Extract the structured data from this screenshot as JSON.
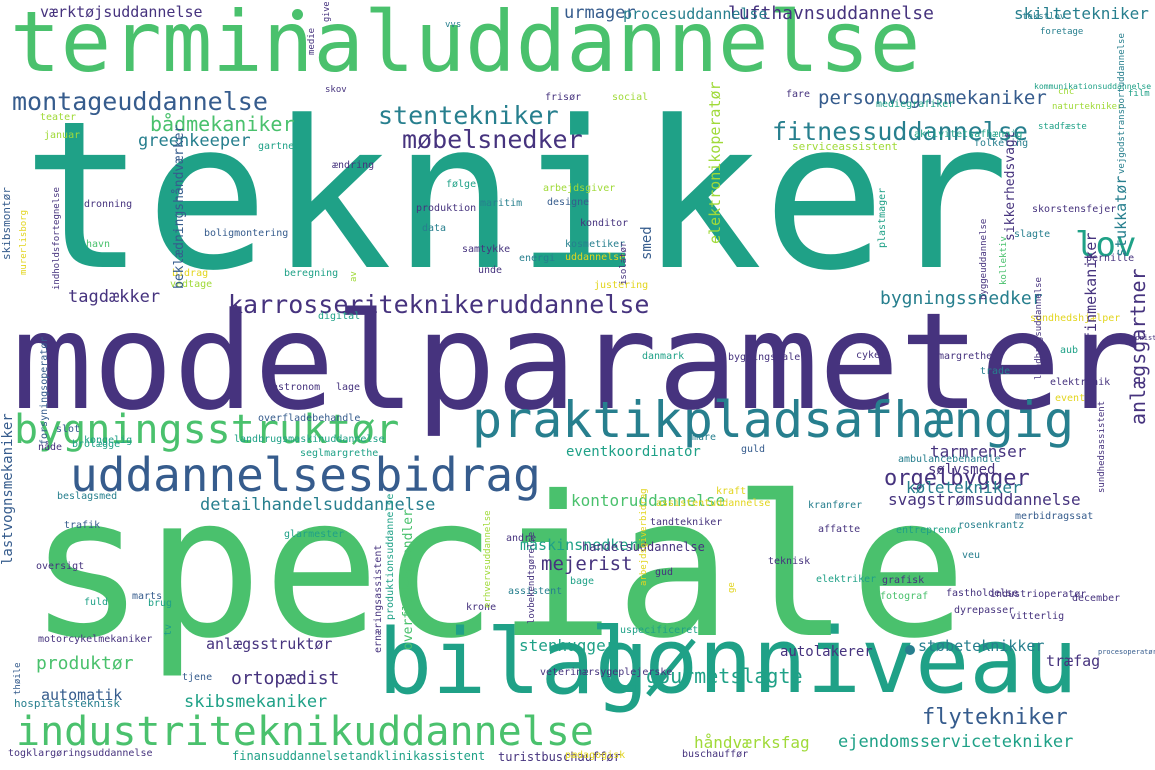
{
  "palette": {
    "dark_purple": "#46337e",
    "blue": "#365c8d",
    "teal": "#277f8e",
    "green": "#1fa187",
    "light_green": "#4ac16d",
    "lime": "#a0da39",
    "yellow": "#e2d51f"
  },
  "words": [
    {
      "text": "tekniker"
    },
    {
      "text": "modelparameter"
    },
    {
      "text": "speciale"
    },
    {
      "text": "terminaluddannelse"
    },
    {
      "text": "bilag"
    },
    {
      "text": "lønniveau"
    },
    {
      "text": "praktikpladsafhængig"
    },
    {
      "text": "industriteknikuddannelse"
    },
    {
      "text": "uddannelsesbidrag"
    },
    {
      "text": "bygningsstruktør"
    },
    {
      "text": "karrosseriteknikeruddannelse"
    },
    {
      "text": "montageuddannelse"
    },
    {
      "text": "stentekniker"
    },
    {
      "text": "møbelsnedker"
    },
    {
      "text": "fitnessuddannelse"
    },
    {
      "text": "lov"
    },
    {
      "text": "bådmekaniker"
    },
    {
      "text": "greenkeeper"
    },
    {
      "text": "personvognsmekaniker"
    },
    {
      "text": "lufthavnsuddannelse"
    },
    {
      "text": "urmager"
    },
    {
      "text": "procesuddannelse"
    },
    {
      "text": "værktøjsuddannelse"
    },
    {
      "text": "skiltetekniker"
    },
    {
      "text": "tagdækker"
    },
    {
      "text": "bygningssnedker"
    },
    {
      "text": "orgelbygger"
    },
    {
      "text": "anlægsgartner"
    },
    {
      "text": "eventkoordinator"
    },
    {
      "text": "tarmrenser"
    },
    {
      "text": "sølvsmed"
    },
    {
      "text": "køletekniker"
    },
    {
      "text": "kontoruddannelse"
    },
    {
      "text": "detailhandelsuddannelse"
    },
    {
      "text": "svagstrømsuddannelse"
    },
    {
      "text": "mejerist"
    },
    {
      "text": "maskinsnedker"
    },
    {
      "text": "handelsuddannelse"
    },
    {
      "text": "ortopædist"
    },
    {
      "text": "produktør"
    },
    {
      "text": "anlægsstruktør"
    },
    {
      "text": "automatik"
    },
    {
      "text": "skibsmekaniker"
    },
    {
      "text": "stenhugger"
    },
    {
      "text": "gourmetslagte"
    },
    {
      "text": "autolakerer"
    },
    {
      "text": "støbeteknikker"
    },
    {
      "text": "flytekniker"
    },
    {
      "text": "træfag"
    },
    {
      "text": "håndværksfag"
    },
    {
      "text": "ejendomsservicetekniker"
    },
    {
      "text": "finansuddannelse"
    },
    {
      "text": "tandklinikassistent"
    },
    {
      "text": "turistbuschauffør"
    },
    {
      "text": "hospitalsteknisk"
    },
    {
      "text": "togklargøringsuddannelse"
    },
    {
      "text": "motorcykelmekaniker"
    },
    {
      "text": "beslagsmed"
    },
    {
      "text": "oversigt"
    },
    {
      "text": "fuld"
    },
    {
      "text": "marts"
    },
    {
      "text": "assistent"
    },
    {
      "text": "trafik"
    },
    {
      "text": "brug"
    },
    {
      "text": "kongelig"
    },
    {
      "text": "slot"
    },
    {
      "text": "brolægge"
    },
    {
      "text": "nåde"
    },
    {
      "text": "seglmargrethe"
    },
    {
      "text": "landbrugsmaskinuddannelse"
    },
    {
      "text": "overfladebehandle"
    },
    {
      "text": "gastronom"
    },
    {
      "text": "digital"
    },
    {
      "text": "beregning"
    },
    {
      "text": "bidrag"
    },
    {
      "text": "vedtage"
    },
    {
      "text": "havn"
    },
    {
      "text": "dronning"
    },
    {
      "text": "boligmontering"
    },
    {
      "text": "produktion"
    },
    {
      "text": "data"
    },
    {
      "text": "maritim"
    },
    {
      "text": "designe"
    },
    {
      "text": "konditor"
    },
    {
      "text": "kosmetiker"
    },
    {
      "text": "samtykke"
    },
    {
      "text": "energi"
    },
    {
      "text": "unde"
    },
    {
      "text": "uddannelse"
    },
    {
      "text": "følge"
    },
    {
      "text": "ændring"
    },
    {
      "text": "januar"
    },
    {
      "text": "teater"
    },
    {
      "text": "gartner"
    },
    {
      "text": "serviceassistent"
    },
    {
      "text": "arbejdsgiver"
    },
    {
      "text": "justering"
    },
    {
      "text": "frisør"
    },
    {
      "text": "social"
    },
    {
      "text": "fare"
    },
    {
      "text": "mediegrafiker"
    },
    {
      "text": "aktivitetsafhængig"
    },
    {
      "text": "folketing"
    },
    {
      "text": "skorstensfejer"
    },
    {
      "text": "slagte"
    },
    {
      "text": "pernille"
    },
    {
      "text": "sundhedshjælper"
    },
    {
      "text": "receptionist"
    },
    {
      "text": "aub"
    },
    {
      "text": "margrethe"
    },
    {
      "text": "trade"
    },
    {
      "text": "elektronik"
    },
    {
      "text": "event"
    },
    {
      "text": "cykel"
    },
    {
      "text": "bygningsmaler"
    },
    {
      "text": "danmark"
    },
    {
      "text": "lage"
    },
    {
      "text": "mure"
    },
    {
      "text": "guld"
    },
    {
      "text": "ambulancebehandle"
    },
    {
      "text": "assistentuddannelse"
    },
    {
      "text": "kraft"
    },
    {
      "text": "kranfører"
    },
    {
      "text": "tandtekniker"
    },
    {
      "text": "rosenkrantz"
    },
    {
      "text": "merbidragssat"
    },
    {
      "text": "affatte"
    },
    {
      "text": "entreprenør"
    },
    {
      "text": "veu"
    },
    {
      "text": "teknisk"
    },
    {
      "text": "elektriker"
    },
    {
      "text": "grafisk"
    },
    {
      "text": "fotograf"
    },
    {
      "text": "fastholdelse"
    },
    {
      "text": "december"
    },
    {
      "text": "industrioperatør"
    },
    {
      "text": "dyrepasser"
    },
    {
      "text": "vitterlig"
    },
    {
      "text": "procesoperatør"
    },
    {
      "text": "uspecificeret"
    },
    {
      "text": "bage"
    },
    {
      "text": "krone"
    },
    {
      "text": "veterinærsygeplejerske"
    },
    {
      "text": "tjene"
    },
    {
      "text": "buschauffør"
    },
    {
      "text": "pædagogisk"
    },
    {
      "text": "andre"
    },
    {
      "text": "gud"
    },
    {
      "text": "tv"
    },
    {
      "text": "glarmester"
    },
    {
      "text": "tekstlov"
    },
    {
      "text": "foretage"
    },
    {
      "text": "vvs"
    },
    {
      "text": "skov"
    },
    {
      "text": "kommunikationsuddannelse"
    },
    {
      "text": "cnc"
    },
    {
      "text": "naturtekniker"
    },
    {
      "text": "stadfæste"
    },
    {
      "text": "film"
    },
    {
      "text": "smed"
    },
    {
      "text": "elektronikoperatør"
    },
    {
      "text": "sikkerhedsvagt"
    },
    {
      "text": "stukkatør"
    },
    {
      "text": "finmekaniker"
    },
    {
      "text": "plastmager"
    },
    {
      "text": "skibsmontør"
    },
    {
      "text": "beklædningshåndværker"
    },
    {
      "text": "forsyningsoperatør"
    },
    {
      "text": "lastvognsmekaniker"
    },
    {
      "text": "overfladebehandler"
    },
    {
      "text": "produktionsuddannelse"
    },
    {
      "text": "ernæringsassistent"
    },
    {
      "text": "byggeuddannelse"
    },
    {
      "text": "isolatør"
    },
    {
      "text": "kollektiv"
    },
    {
      "text": "landbrugsuddannelse"
    },
    {
      "text": "vejgodstransportuddannelse"
    },
    {
      "text": "indholdsfortegnelse"
    },
    {
      "text": "murerlisborg"
    },
    {
      "text": "erhvervsuddannelse"
    },
    {
      "text": "arbejdsgiverbidrag"
    },
    {
      "text": "lovbekendtgørelse"
    },
    {
      "text": "sundhedsassistent"
    },
    {
      "text": "give"
    },
    {
      "text": "medie"
    },
    {
      "text": "av"
    },
    {
      "text": "thøile"
    },
    {
      "text": "ge"
    },
    {
      "text": "pris"
    },
    {
      "text": "and"
    },
    {
      "text": "eud"
    },
    {
      "text": "hånd"
    }
  ]
}
